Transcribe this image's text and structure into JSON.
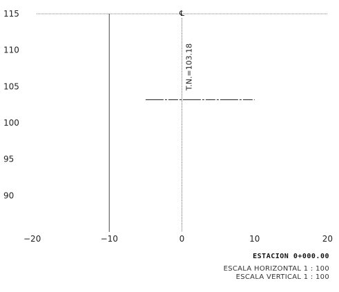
{
  "chart_data": {
    "type": "line",
    "xlim": [
      -20,
      20
    ],
    "ylim": [
      85,
      115
    ],
    "x_ticks": [
      -20,
      -10,
      0,
      10,
      20
    ],
    "y_ticks": [
      90,
      95,
      100,
      105,
      110,
      115
    ],
    "x_tick_labels": [
      "−20",
      "−10",
      "0",
      "10",
      "20"
    ],
    "y_tick_labels": [
      "90",
      "95",
      "100",
      "105",
      "110",
      "115"
    ],
    "grid": false,
    "terrain_line": {
      "x": [
        -5,
        10
      ],
      "y": [
        103.18,
        103.18
      ]
    },
    "centerline_x": 0,
    "centerline_symbol": "℄",
    "annotation": "T.N.=103.18"
  },
  "station_label": "ESTACION 0+000.00",
  "scale_horizontal": "ESCALA HORIZONTAL  1  :  100",
  "scale_vertical": "ESCALA VERTICAL  1  :  100"
}
